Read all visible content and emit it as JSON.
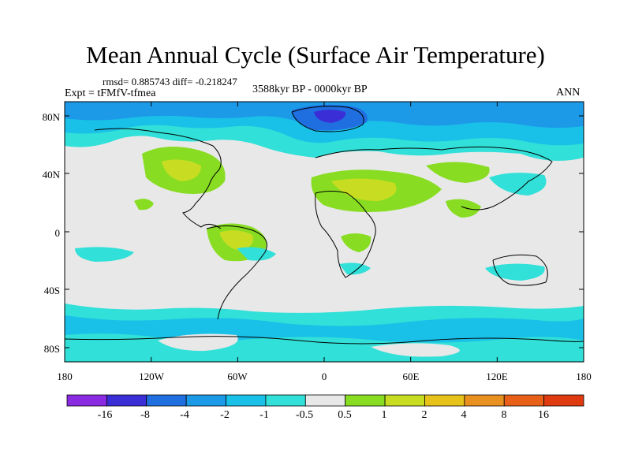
{
  "title": "Mean Annual Cycle (Surface Air Temperature)",
  "stats": "rmsd= 0.885743 diff= -0.218247",
  "experiment": "Expt = tFMfV-tfmea",
  "period": "3588kyr BP - 0000kyr BP",
  "season": "ANN",
  "lat_labels": [
    "80N",
    "40N",
    "0",
    "40S",
    "80S"
  ],
  "lon_labels": [
    "180",
    "120W",
    "60W",
    "0",
    "60E",
    "120E",
    "180"
  ],
  "colorbar": {
    "labels": [
      "-16",
      "-8",
      "-4",
      "-2",
      "-1",
      "-0.5",
      "0.5",
      "1",
      "2",
      "4",
      "8",
      "16"
    ],
    "colors": [
      "#8a2be2",
      "#3a2fd6",
      "#1f6fe0",
      "#1c9ae8",
      "#19c0e8",
      "#31e0d8",
      "#e8e8e8",
      "#88dd22",
      "#c8dd22",
      "#e6c21a",
      "#e89020",
      "#e86018",
      "#e03a10"
    ]
  },
  "map_colors": {
    "neutral": "#e8e8e8",
    "cyan": "#31e0d8",
    "lightblue": "#19c0e8",
    "blue": "#1c9ae8",
    "deepblue": "#1f6fe0",
    "navy": "#3a2fd6",
    "green": "#88dd22",
    "yellow": "#c8dd22",
    "gold": "#e6c21a",
    "coast": "#000000"
  }
}
